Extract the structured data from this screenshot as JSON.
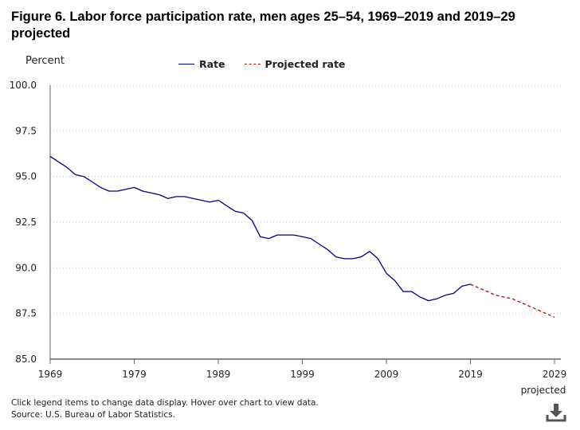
{
  "chart_data": {
    "type": "line",
    "title": "Figure 6. Labor force participation rate, men ages 25–54, 1969–2019 and 2019–29 projected",
    "ylabel": "Percent",
    "ylim": [
      85.0,
      100.0
    ],
    "yticks": [
      "85.0",
      "87.5",
      "90.0",
      "92.5",
      "95.0",
      "97.5",
      "100.0"
    ],
    "xlim": [
      1969,
      2029
    ],
    "xticks": [
      "1969",
      "1979",
      "1989",
      "1999",
      "2009",
      "2019",
      "2029"
    ],
    "xtick_sublabel": "projected",
    "grid": "horizontal dotted",
    "legend_position": "top",
    "series": [
      {
        "name": "Rate",
        "color": "#000080",
        "style": "solid",
        "x": [
          1969,
          1970,
          1971,
          1972,
          1973,
          1974,
          1975,
          1976,
          1977,
          1978,
          1979,
          1980,
          1981,
          1982,
          1983,
          1984,
          1985,
          1986,
          1987,
          1988,
          1989,
          1990,
          1991,
          1992,
          1993,
          1994,
          1995,
          1996,
          1997,
          1998,
          1999,
          2000,
          2001,
          2002,
          2003,
          2004,
          2005,
          2006,
          2007,
          2008,
          2009,
          2010,
          2011,
          2012,
          2013,
          2014,
          2015,
          2016,
          2017,
          2018,
          2019
        ],
        "values": [
          96.1,
          95.8,
          95.5,
          95.1,
          95.0,
          94.7,
          94.4,
          94.2,
          94.2,
          94.3,
          94.4,
          94.2,
          94.1,
          94.0,
          93.8,
          93.9,
          93.9,
          93.8,
          93.7,
          93.6,
          93.7,
          93.4,
          93.1,
          93.0,
          92.6,
          91.7,
          91.6,
          91.8,
          91.8,
          91.8,
          91.7,
          91.6,
          91.3,
          91.0,
          90.6,
          90.5,
          90.5,
          90.6,
          90.9,
          90.5,
          89.7,
          89.3,
          88.7,
          88.7,
          88.4,
          88.2,
          88.3,
          88.5,
          88.6,
          89.0,
          89.1
        ]
      },
      {
        "name": "Projected rate",
        "color": "#a50f0f",
        "style": "dashed",
        "x": [
          2019,
          2020,
          2021,
          2022,
          2023,
          2024,
          2025,
          2026,
          2027,
          2028,
          2029
        ],
        "values": [
          89.1,
          88.9,
          88.7,
          88.5,
          88.4,
          88.3,
          88.1,
          87.9,
          87.7,
          87.5,
          87.3
        ]
      }
    ]
  },
  "footnotes": {
    "line1": "Click legend items to change data display. Hover over chart to view data.",
    "line2": "Source: U.S. Bureau of Labor Statistics."
  },
  "icons": {
    "download": "download-icon"
  }
}
